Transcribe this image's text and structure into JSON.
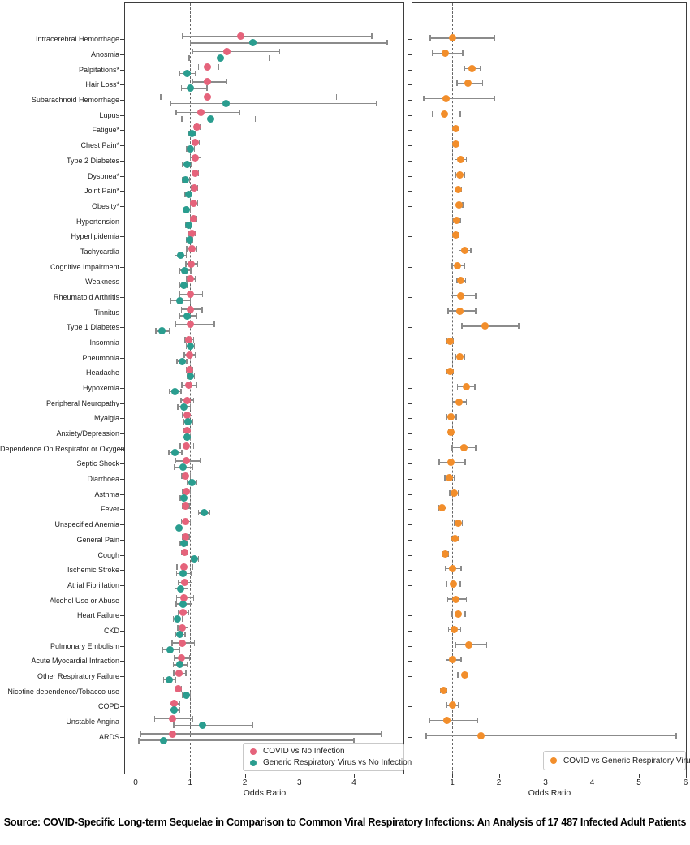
{
  "figure": {
    "source_note": "Source: COVID-Specific Long-term Sequelae in Comparison to Common Viral Respiratory Infections: An Analysis of 17 487 Infected Adult Patients"
  },
  "chart_data": {
    "type": "scatter",
    "subtype": "forest_plot_odds_ratios",
    "grid": false,
    "panels": [
      {
        "id": "left",
        "xlabel": "Odds Ratio",
        "xticks": [
          0,
          1,
          2,
          3,
          4
        ],
        "xlim": [
          -0.2,
          4.9
        ],
        "reference_line": 1,
        "legend_position": "lower right",
        "series": [
          {
            "key": "covid",
            "name": "COVID vs No Infection",
            "color": "#e5637b"
          },
          {
            "key": "generic",
            "name": "Generic Respiratory Virus vs No Infection",
            "color": "#2a9d8f"
          }
        ]
      },
      {
        "id": "right",
        "xlabel": "Odds Ratio",
        "xticks": [
          1,
          2,
          3,
          4,
          5,
          6
        ],
        "xlim": [
          0.15,
          6.05
        ],
        "reference_line": 1,
        "legend_position": "lower right",
        "series": [
          {
            "key": "covid_vs_generic",
            "name": "COVID vs Generic Respiratory Virus",
            "color": "#f28e2b"
          }
        ]
      }
    ],
    "value_format": "odds ratio [95% CI lower, upper]",
    "rows": [
      {
        "condition": "Intracerebral Hemorrhage",
        "covid": [
          1.93,
          0.86,
          4.33
        ],
        "generic": [
          2.15,
          1.0,
          4.61
        ],
        "covid_vs_generic": [
          1.01,
          0.53,
          1.91
        ]
      },
      {
        "condition": "Anosmia",
        "covid": [
          1.67,
          1.05,
          2.64
        ],
        "generic": [
          1.56,
          0.98,
          2.45
        ],
        "covid_vs_generic": [
          0.85,
          0.58,
          1.23
        ]
      },
      {
        "condition": "Palpitations*",
        "covid": [
          1.32,
          1.15,
          1.52
        ],
        "generic": [
          0.95,
          0.81,
          1.09
        ],
        "covid_vs_generic": [
          1.42,
          1.27,
          1.6
        ]
      },
      {
        "condition": "Hair Loss*",
        "covid": [
          1.31,
          1.05,
          1.67
        ],
        "generic": [
          1.0,
          0.84,
          1.31
        ],
        "covid_vs_generic": [
          1.34,
          1.1,
          1.65
        ]
      },
      {
        "condition": "Subarachnoid Hemorrhage",
        "covid": [
          1.32,
          0.46,
          3.68
        ],
        "generic": [
          1.66,
          0.64,
          4.42
        ],
        "covid_vs_generic": [
          0.87,
          0.39,
          1.91
        ]
      },
      {
        "condition": "Lupus",
        "covid": [
          1.19,
          0.74,
          1.9
        ],
        "generic": [
          1.37,
          0.85,
          2.19
        ],
        "covid_vs_generic": [
          0.84,
          0.57,
          1.17
        ]
      },
      {
        "condition": "Fatigue*",
        "covid": [
          1.13,
          1.08,
          1.19
        ],
        "generic": [
          1.03,
          0.97,
          1.1
        ],
        "covid_vs_generic": [
          1.08,
          1.02,
          1.15
        ]
      },
      {
        "condition": "Chest Pain*",
        "covid": [
          1.1,
          1.04,
          1.17
        ],
        "generic": [
          1.01,
          0.94,
          1.08
        ],
        "covid_vs_generic": [
          1.08,
          1.01,
          1.15
        ]
      },
      {
        "condition": "Type 2 Diabetes",
        "covid": [
          1.09,
          1.0,
          1.2
        ],
        "generic": [
          0.94,
          0.86,
          1.02
        ],
        "covid_vs_generic": [
          1.19,
          1.06,
          1.3
        ]
      },
      {
        "condition": "Dyspnea*",
        "covid": [
          1.09,
          1.03,
          1.15
        ],
        "generic": [
          0.92,
          0.86,
          0.99
        ],
        "covid_vs_generic": [
          1.17,
          1.08,
          1.26
        ]
      },
      {
        "condition": "Joint Pain*",
        "covid": [
          1.08,
          1.02,
          1.14
        ],
        "generic": [
          0.97,
          0.91,
          1.03
        ],
        "covid_vs_generic": [
          1.13,
          1.06,
          1.2
        ]
      },
      {
        "condition": "Obesity*",
        "covid": [
          1.07,
          1.0,
          1.14
        ],
        "generic": [
          0.93,
          0.87,
          1.0
        ],
        "covid_vs_generic": [
          1.14,
          1.06,
          1.23
        ]
      },
      {
        "condition": "Hypertension",
        "covid": [
          1.06,
          1.0,
          1.12
        ],
        "generic": [
          0.97,
          0.92,
          1.03
        ],
        "covid_vs_generic": [
          1.09,
          1.02,
          1.17
        ]
      },
      {
        "condition": "Hyperlipidemia",
        "covid": [
          1.04,
          0.98,
          1.1
        ],
        "generic": [
          0.99,
          0.93,
          1.05
        ],
        "covid_vs_generic": [
          1.07,
          1.01,
          1.14
        ]
      },
      {
        "condition": "Tachycardia",
        "covid": [
          1.03,
          0.94,
          1.12
        ],
        "generic": [
          0.82,
          0.72,
          0.93
        ],
        "covid_vs_generic": [
          1.27,
          1.15,
          1.4
        ]
      },
      {
        "condition": "Cognitive Impairment",
        "covid": [
          1.02,
          0.92,
          1.14
        ],
        "generic": [
          0.9,
          0.8,
          1.01
        ],
        "covid_vs_generic": [
          1.12,
          1.0,
          1.26
        ]
      },
      {
        "condition": "Weakness",
        "covid": [
          1.01,
          0.94,
          1.09
        ],
        "generic": [
          0.88,
          0.81,
          0.95
        ],
        "covid_vs_generic": [
          1.19,
          1.1,
          1.29
        ]
      },
      {
        "condition": "Rheumatoid Arthritis",
        "covid": [
          1.0,
          0.81,
          1.23
        ],
        "generic": [
          0.81,
          0.65,
          1.0
        ],
        "covid_vs_generic": [
          1.19,
          0.97,
          1.5
        ]
      },
      {
        "condition": "Tinnitus",
        "covid": [
          1.01,
          0.84,
          1.22
        ],
        "generic": [
          0.95,
          0.81,
          1.12
        ],
        "covid_vs_generic": [
          1.17,
          0.91,
          1.5
        ]
      },
      {
        "condition": "Type 1 Diabetes",
        "covid": [
          1.0,
          0.73,
          1.44
        ],
        "generic": [
          0.48,
          0.37,
          0.62
        ],
        "covid_vs_generic": [
          1.7,
          1.21,
          2.43
        ]
      },
      {
        "condition": "Insomnia",
        "covid": [
          0.98,
          0.91,
          1.06
        ],
        "generic": [
          1.0,
          0.93,
          1.08
        ],
        "covid_vs_generic": [
          0.95,
          0.88,
          1.03
        ]
      },
      {
        "condition": "Pneumonia",
        "covid": [
          0.99,
          0.89,
          1.09
        ],
        "generic": [
          0.85,
          0.76,
          0.94
        ],
        "covid_vs_generic": [
          1.17,
          1.08,
          1.27
        ]
      },
      {
        "condition": "Headache",
        "covid": [
          0.99,
          0.93,
          1.05
        ],
        "generic": [
          1.01,
          0.95,
          1.08
        ],
        "covid_vs_generic": [
          0.95,
          0.89,
          1.02
        ]
      },
      {
        "condition": "Hypoxemia",
        "covid": [
          0.97,
          0.85,
          1.12
        ],
        "generic": [
          0.72,
          0.62,
          0.83
        ],
        "covid_vs_generic": [
          1.3,
          1.11,
          1.49
        ]
      },
      {
        "condition": "Peripheral Neuropathy",
        "covid": [
          0.94,
          0.83,
          1.06
        ],
        "generic": [
          0.88,
          0.77,
          1.0
        ],
        "covid_vs_generic": [
          1.15,
          1.01,
          1.3
        ]
      },
      {
        "condition": "Myalgia",
        "covid": [
          0.94,
          0.86,
          1.03
        ],
        "generic": [
          0.96,
          0.88,
          1.05
        ],
        "covid_vs_generic": [
          0.98,
          0.88,
          1.09
        ]
      },
      {
        "condition": "Anxiety/Depression",
        "covid": [
          0.94,
          0.89,
          0.99
        ],
        "generic": [
          0.95,
          0.9,
          1.0
        ],
        "covid_vs_generic": [
          0.97,
          0.92,
          1.03
        ]
      },
      {
        "condition": "Dependence On Respirator or Oxygen",
        "covid": [
          0.93,
          0.82,
          1.06
        ],
        "generic": [
          0.72,
          0.61,
          0.85
        ],
        "covid_vs_generic": [
          1.26,
          1.0,
          1.5
        ]
      },
      {
        "condition": "Septic Shock",
        "covid": [
          0.93,
          0.73,
          1.18
        ],
        "generic": [
          0.87,
          0.71,
          1.05
        ],
        "covid_vs_generic": [
          0.98,
          0.72,
          1.28
        ]
      },
      {
        "condition": "Diarrhoea",
        "covid": [
          0.92,
          0.85,
          1.0
        ],
        "generic": [
          1.03,
          0.95,
          1.12
        ],
        "covid_vs_generic": [
          0.94,
          0.84,
          1.05
        ]
      },
      {
        "condition": "Asthma",
        "covid": [
          0.93,
          0.86,
          1.0
        ],
        "generic": [
          0.89,
          0.82,
          0.96
        ],
        "covid_vs_generic": [
          1.04,
          0.95,
          1.14
        ]
      },
      {
        "condition": "Fever",
        "covid": [
          0.92,
          0.86,
          0.98
        ],
        "generic": [
          1.25,
          1.15,
          1.35
        ],
        "covid_vs_generic": [
          0.79,
          0.71,
          0.87
        ]
      },
      {
        "condition": "Unspecified Anemia",
        "covid": [
          0.92,
          0.84,
          1.0
        ],
        "generic": [
          0.79,
          0.72,
          0.87
        ],
        "covid_vs_generic": [
          1.13,
          1.04,
          1.22
        ]
      },
      {
        "condition": "General Pain",
        "covid": [
          0.92,
          0.86,
          0.98
        ],
        "generic": [
          0.88,
          0.82,
          0.94
        ],
        "covid_vs_generic": [
          1.06,
          0.99,
          1.14
        ]
      },
      {
        "condition": "Cough",
        "covid": [
          0.9,
          0.85,
          0.95
        ],
        "generic": [
          1.08,
          1.02,
          1.15
        ],
        "covid_vs_generic": [
          0.86,
          0.8,
          0.91
        ]
      },
      {
        "condition": "Ischemic Stroke",
        "covid": [
          0.89,
          0.76,
          1.05
        ],
        "generic": [
          0.87,
          0.75,
          1.02
        ],
        "covid_vs_generic": [
          1.01,
          0.86,
          1.19
        ]
      },
      {
        "condition": "Atrial Fibrillation",
        "covid": [
          0.9,
          0.78,
          1.03
        ],
        "generic": [
          0.83,
          0.72,
          0.96
        ],
        "covid_vs_generic": [
          1.03,
          0.89,
          1.17
        ]
      },
      {
        "condition": "Alcohol Use or Abuse",
        "covid": [
          0.89,
          0.75,
          1.06
        ],
        "generic": [
          0.87,
          0.74,
          1.03
        ],
        "covid_vs_generic": [
          1.08,
          0.9,
          1.3
        ]
      },
      {
        "condition": "Heart Failure",
        "covid": [
          0.87,
          0.78,
          0.97
        ],
        "generic": [
          0.77,
          0.69,
          0.86
        ],
        "covid_vs_generic": [
          1.13,
          1.0,
          1.28
        ]
      },
      {
        "condition": "CKD",
        "covid": [
          0.86,
          0.77,
          0.96
        ],
        "generic": [
          0.81,
          0.73,
          0.91
        ],
        "covid_vs_generic": [
          1.04,
          0.92,
          1.18
        ]
      },
      {
        "condition": "Pulmonary Embolism",
        "covid": [
          0.85,
          0.67,
          1.08
        ],
        "generic": [
          0.63,
          0.5,
          0.81
        ],
        "covid_vs_generic": [
          1.35,
          1.07,
          1.74
        ]
      },
      {
        "condition": "Acute Myocardial Infraction",
        "covid": [
          0.84,
          0.71,
          0.99
        ],
        "generic": [
          0.81,
          0.69,
          0.95
        ],
        "covid_vs_generic": [
          1.01,
          0.87,
          1.19
        ]
      },
      {
        "condition": "Other Respiratory Failure",
        "covid": [
          0.8,
          0.7,
          0.92
        ],
        "generic": [
          0.61,
          0.51,
          0.73
        ],
        "covid_vs_generic": [
          1.27,
          1.12,
          1.43
        ]
      },
      {
        "condition": "Nicotine dependence/Tobacco use",
        "covid": [
          0.78,
          0.72,
          0.84
        ],
        "generic": [
          0.93,
          0.86,
          1.0
        ],
        "covid_vs_generic": [
          0.82,
          0.75,
          0.88
        ]
      },
      {
        "condition": "COPD",
        "covid": [
          0.71,
          0.63,
          0.8
        ],
        "generic": [
          0.71,
          0.63,
          0.8
        ],
        "covid_vs_generic": [
          1.0,
          0.88,
          1.14
        ]
      },
      {
        "condition": "Unstable Angina",
        "covid": [
          0.67,
          0.35,
          1.05
        ],
        "generic": [
          1.22,
          0.7,
          2.15
        ],
        "covid_vs_generic": [
          0.88,
          0.51,
          1.54
        ]
      },
      {
        "condition": "ARDS",
        "covid": [
          0.67,
          0.1,
          4.5
        ],
        "generic": [
          0.52,
          0.06,
          4.0
        ],
        "covid_vs_generic": [
          1.61,
          0.44,
          5.8
        ]
      }
    ]
  }
}
